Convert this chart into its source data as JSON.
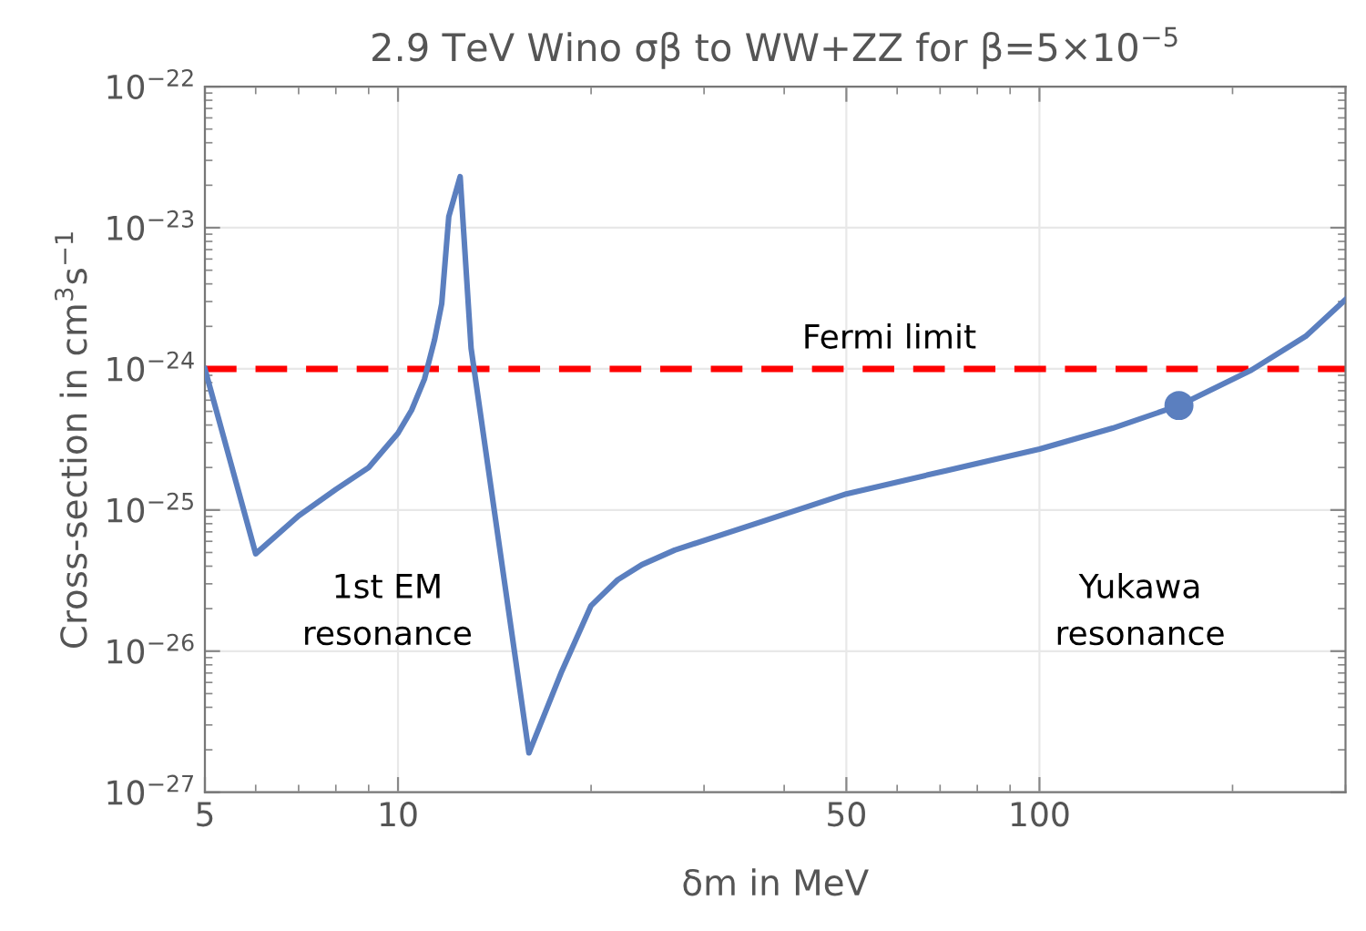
{
  "chart_data": {
    "type": "line",
    "title": "2.9 TeV Wino σβ to WW+ZZ for β=5×10$^{−5}$",
    "xlabel": "δm in MeV",
    "ylabel": "Cross-section in cm$^{3}$s$^{−1}$",
    "log": "xy",
    "xlim": [
      5,
      300
    ],
    "ylim": [
      1e-27,
      1e-22
    ],
    "xticks": [
      5,
      10,
      50,
      100
    ],
    "yticks": [
      {
        "value": 1e-22,
        "label": "10$^{−22}$"
      },
      {
        "value": 1e-23,
        "label": "10$^{−23}$"
      },
      {
        "value": 1e-24,
        "label": "10$^{−24}$"
      },
      {
        "value": 1e-25,
        "label": "10$^{−25}$"
      },
      {
        "value": 1e-26,
        "label": "10$^{−26}$"
      },
      {
        "value": 1e-27,
        "label": "10$^{−27}$"
      }
    ],
    "grid": true,
    "marker": "none",
    "line_style": "solid",
    "series": [
      {
        "color": "#5b7fbf",
        "x": [
          5,
          6,
          7,
          8,
          9,
          10,
          10.5,
          11,
          11.4,
          11.7,
          12,
          12.5,
          13,
          16,
          18,
          20,
          22,
          24,
          27,
          37,
          50,
          71.5,
          100,
          130,
          165,
          214,
          260,
          300
        ],
        "values": [
          1e-24,
          4.9e-26,
          9.1e-26,
          1.4e-25,
          2e-25,
          3.5e-25,
          5.1e-25,
          8.5e-25,
          1.6e-24,
          2.9e-24,
          1.2e-23,
          2.3e-23,
          1.4e-24,
          1.9e-27,
          7.2e-27,
          2.1e-26,
          3.2e-26,
          4.1e-26,
          5.2e-26,
          8.3e-26,
          1.3e-25,
          1.9e-25,
          2.7e-25,
          3.8e-25,
          5.5e-25,
          9.8e-25,
          1.7e-24,
          3.1e-24
        ]
      },
      {
        "type": "scatter",
        "color": "#5b7fbf",
        "marker": "circle",
        "x": [
          165
        ],
        "values": [
          5.5e-25
        ]
      }
    ],
    "ref_lines": [
      {
        "axis": "y",
        "value": 1e-24,
        "label": "Fermi limit",
        "color": "#ff0000",
        "line_style": "dashed"
      }
    ],
    "annotations": [
      "1st EM\nresonance",
      "Yukawa\nresonance"
    ]
  }
}
